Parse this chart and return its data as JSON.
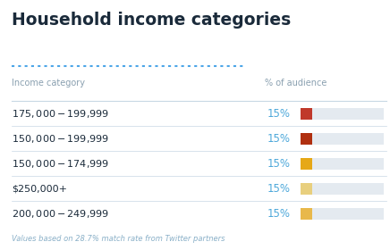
{
  "title": "Household income categories",
  "col_header_left": "Income category",
  "col_header_right": "% of audience",
  "footer": "Values based on 28.7% match rate from Twitter partners",
  "categories": [
    "$175,000 - $199,999",
    "$150,000 - $199,999",
    "$150,000 - $174,999",
    "$250,000+",
    "$200,000 - $249,999"
  ],
  "values": [
    15,
    15,
    15,
    15,
    15
  ],
  "bar_colors": [
    "#c0392b",
    "#b03010",
    "#e6a817",
    "#e8cf7e",
    "#e8b84b"
  ],
  "bar_max": 100,
  "bar_fill_color": "#e4eaf0",
  "title_color": "#1a2a3a",
  "header_color": "#8aa0b0",
  "category_color": "#1a2a3a",
  "value_color": "#4da8da",
  "footer_color": "#8ab0c8",
  "dotted_line_color": "#4da6e8",
  "separator_color": "#c8d8e4",
  "bg_color": "#ffffff",
  "title_fontsize": 13.5,
  "header_fontsize": 7.0,
  "category_fontsize": 8.0,
  "value_fontsize": 8.5,
  "footer_fontsize": 6.0
}
